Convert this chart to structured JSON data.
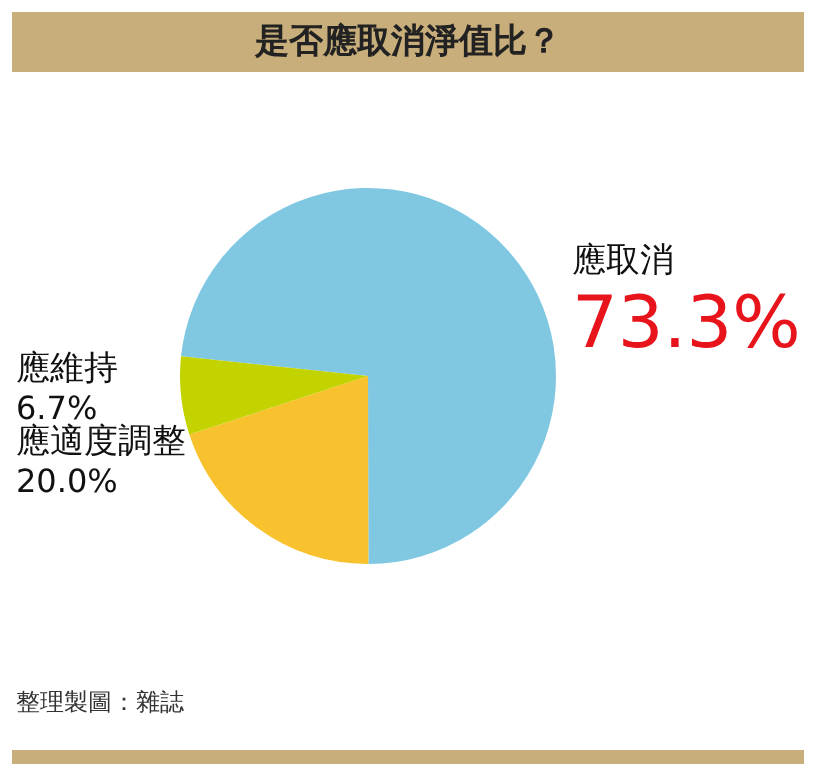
{
  "chart_data": {
    "type": "pie",
    "title": "是否應取消淨值比？",
    "categories": [
      "應取消",
      "應適度調整",
      "應維持"
    ],
    "values": [
      73.3,
      20.0,
      6.7
    ],
    "value_labels": [
      "73.3%",
      "20.0%",
      "6.7%"
    ],
    "colors": [
      "#80c8e2",
      "#f8c22e",
      "#c3d300"
    ],
    "legend": false,
    "annotations": [
      "整理製圖：雜誌"
    ]
  }
}
